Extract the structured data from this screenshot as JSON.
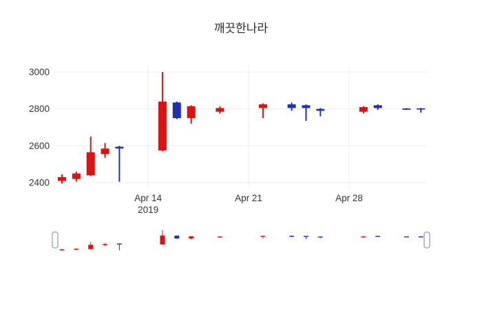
{
  "title": "깨끗한나라",
  "colors": {
    "up": "#dd1111",
    "down": "#2030b0",
    "grid": "#ececec",
    "axis_text": "#333333",
    "title_text": "#2a2a2a",
    "background": "#ffffff",
    "slider_handle_stroke": "#aaaaaa"
  },
  "y_axis": {
    "ticks": [
      2400,
      2600,
      2800,
      3000
    ]
  },
  "x_axis": {
    "ticks": [
      {
        "date": "2019-04-14",
        "lines": [
          "Apr 14",
          "2019"
        ]
      },
      {
        "date": "2019-04-21",
        "lines": [
          "Apr 21"
        ]
      },
      {
        "date": "2019-04-28",
        "lines": [
          "Apr 28"
        ]
      }
    ]
  },
  "rangeslider": {
    "visible": true
  },
  "chart_data": {
    "type": "candlestick",
    "title": "깨끗한나라",
    "x": [
      "2019-04-08",
      "2019-04-09",
      "2019-04-10",
      "2019-04-11",
      "2019-04-12",
      "2019-04-15",
      "2019-04-16",
      "2019-04-17",
      "2019-04-19",
      "2019-04-22",
      "2019-04-24",
      "2019-04-25",
      "2019-04-26",
      "2019-04-29",
      "2019-04-30",
      "2019-05-02",
      "2019-05-03"
    ],
    "open": [
      2410,
      2420,
      2440,
      2555,
      2595,
      2575,
      2835,
      2750,
      2785,
      2805,
      2825,
      2820,
      2800,
      2785,
      2820,
      2800,
      2802
    ],
    "high": [
      2445,
      2460,
      2650,
      2615,
      2600,
      3000,
      2840,
      2820,
      2815,
      2830,
      2835,
      2825,
      2805,
      2815,
      2825,
      2805,
      2805
    ],
    "low": [
      2395,
      2405,
      2435,
      2535,
      2405,
      2570,
      2745,
      2720,
      2775,
      2750,
      2790,
      2735,
      2760,
      2775,
      2795,
      2795,
      2780
    ],
    "close": [
      2430,
      2450,
      2565,
      2585,
      2585,
      2840,
      2750,
      2815,
      2805,
      2825,
      2805,
      2805,
      2790,
      2810,
      2805,
      2798,
      2798
    ],
    "increasing_color": "#dd1111",
    "decreasing_color": "#2030b0",
    "ylim": [
      2350,
      3050
    ],
    "grid": true,
    "legend": false,
    "rangeslider": true
  }
}
